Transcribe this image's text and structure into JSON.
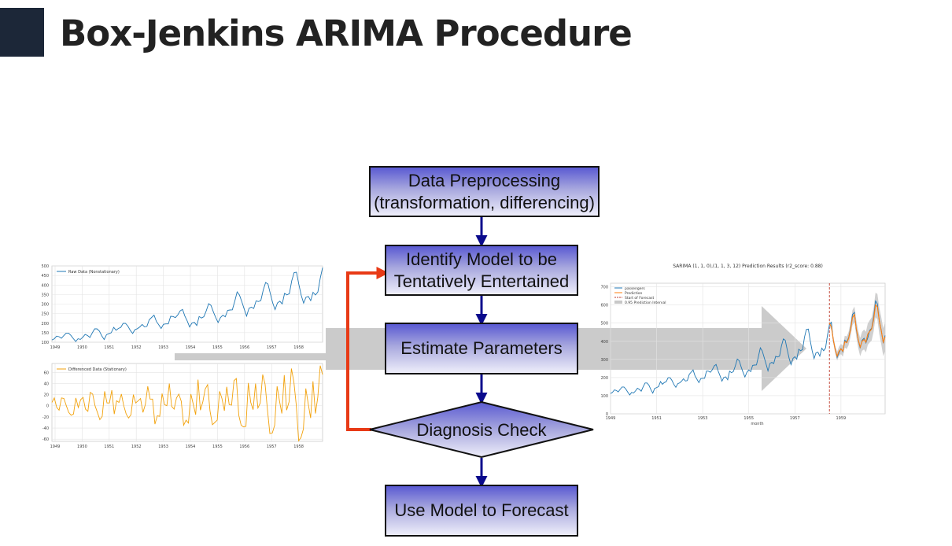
{
  "slide": {
    "title": "Box-Jenkins ARIMA Procedure"
  },
  "flowchart": {
    "step1": "Data Preprocessing\n(transformation, differencing)",
    "step2": "Identify Model to be\nTentatively Entertained",
    "step3": "Estimate Parameters",
    "step4": "Diagnosis Check",
    "step5": "Use Model to Forecast",
    "colors": {
      "arrow": "#0a0a8c",
      "feedback": "#e83a16",
      "box_top": "#5a5ad2",
      "box_bottom": "#eeeefa",
      "band": "#c8c8c8"
    }
  },
  "chart_data": [
    {
      "type": "line",
      "legend": [
        "Raw Data (Nonstationary)"
      ],
      "x_ticks": [
        "1949",
        "1950",
        "1951",
        "1952",
        "1953",
        "1954",
        "1955",
        "1956",
        "1957",
        "1958"
      ],
      "y_ticks": [
        "100",
        "150",
        "200",
        "250",
        "300",
        "350",
        "400",
        "450",
        "500"
      ],
      "ylim": [
        100,
        500
      ],
      "grid": true,
      "legend_position": "top-left",
      "color": "#1f77b4",
      "series": [
        {
          "values": [
            112,
            118,
            132,
            129,
            121,
            135,
            148,
            148,
            136,
            119,
            104,
            118,
            115,
            126,
            141,
            135,
            125,
            149,
            170,
            170,
            158,
            133,
            114,
            140,
            145,
            150,
            178,
            163,
            172,
            178,
            199,
            199,
            184,
            162,
            146,
            166,
            171,
            180,
            193,
            181,
            183,
            218,
            230,
            242,
            209,
            191,
            172,
            194,
            196,
            196,
            236,
            235,
            229,
            243,
            264,
            272,
            237,
            211,
            180,
            201,
            204,
            188,
            235,
            227,
            234,
            264,
            302,
            293,
            259,
            229,
            203,
            229,
            242,
            233,
            267,
            269,
            270,
            315,
            364,
            347,
            312,
            274,
            237,
            278,
            284,
            277,
            317,
            313,
            318,
            374,
            413,
            405,
            355,
            306,
            271,
            306,
            315,
            301,
            356,
            348,
            355,
            422,
            465,
            467,
            404,
            347,
            305,
            336,
            340,
            318,
            362,
            348,
            363,
            435,
            491
          ]
        }
      ]
    },
    {
      "type": "line",
      "legend": [
        "Differenced Data (Stationary)"
      ],
      "x_ticks": [
        "1949",
        "1950",
        "1951",
        "1952",
        "1953",
        "1954",
        "1955",
        "1956",
        "1957",
        "1958"
      ],
      "y_ticks": [
        "60",
        "40",
        "20",
        "0",
        "-20",
        "-40",
        "-60"
      ],
      "ylim": [
        -64,
        76
      ],
      "grid": true,
      "legend_position": "top-left",
      "color": "#f2a20c",
      "series": [
        {
          "values": [
            6,
            14,
            -3,
            -8,
            14,
            13,
            0,
            -12,
            -17,
            -15,
            14,
            -3,
            11,
            15,
            -6,
            -10,
            24,
            21,
            0,
            -12,
            -25,
            -19,
            26,
            5,
            5,
            28,
            -15,
            9,
            6,
            21,
            0,
            -15,
            -22,
            -16,
            20,
            5,
            9,
            13,
            -12,
            2,
            35,
            12,
            12,
            -33,
            -18,
            -19,
            22,
            2,
            0,
            40,
            -1,
            -6,
            14,
            21,
            8,
            -35,
            -26,
            -31,
            21,
            3,
            -16,
            47,
            -8,
            7,
            30,
            38,
            -9,
            -34,
            -30,
            -26,
            26,
            13,
            -9,
            34,
            2,
            1,
            45,
            49,
            -17,
            -35,
            -38,
            -37,
            41,
            6,
            -7,
            40,
            -4,
            5,
            56,
            39,
            -8,
            -50,
            -49,
            -35,
            35,
            9,
            -14,
            55,
            -8,
            7,
            67,
            43,
            2,
            -63,
            -57,
            -42,
            31,
            4,
            -22,
            44,
            -14,
            15,
            72,
            56
          ]
        }
      ]
    },
    {
      "type": "line",
      "title": "SARIMA (1, 1, 0),(1, 1, 3, 12) Prediction Results (r2_score: 0.88)",
      "xlabel": "month",
      "legend": [
        "passengers",
        "Prediction",
        "Start of Forecast",
        "0.95 Prediction Interval"
      ],
      "x_ticks": [
        "1949",
        "1951",
        "1953",
        "1955",
        "1957",
        "1959"
      ],
      "y_ticks": [
        "700",
        "600",
        "500",
        "400",
        "300",
        "200",
        "100",
        "0"
      ],
      "ylim": [
        0,
        720
      ],
      "grid": true,
      "legend_position": "top-left",
      "forecast_start": 1958.5,
      "colors": {
        "passengers": "#1f77b4",
        "prediction": "#ff7f0e",
        "start": "#c0392b",
        "interval": "#c8c8c8"
      },
      "series": [
        {
          "name": "passengers",
          "values": [
            112,
            118,
            132,
            129,
            121,
            135,
            148,
            148,
            136,
            119,
            104,
            118,
            115,
            126,
            141,
            135,
            125,
            149,
            170,
            170,
            158,
            133,
            114,
            140,
            145,
            150,
            178,
            163,
            172,
            178,
            199,
            199,
            184,
            162,
            146,
            166,
            171,
            180,
            193,
            181,
            183,
            218,
            230,
            242,
            209,
            191,
            172,
            194,
            196,
            196,
            236,
            235,
            229,
            243,
            264,
            272,
            237,
            211,
            180,
            201,
            204,
            188,
            235,
            227,
            234,
            264,
            302,
            293,
            259,
            229,
            203,
            229,
            242,
            233,
            267,
            269,
            270,
            315,
            364,
            347,
            312,
            274,
            237,
            278,
            284,
            277,
            317,
            313,
            318,
            374,
            413,
            405,
            355,
            306,
            271,
            306,
            315,
            301,
            356,
            348,
            355,
            422,
            465,
            467,
            404,
            347,
            305,
            336,
            340,
            318,
            362,
            348,
            363,
            435,
            491,
            505,
            404,
            359,
            310,
            337,
            360,
            342,
            406,
            396,
            420,
            472,
            548,
            559,
            463,
            407,
            362,
            405,
            417,
            391,
            419,
            461,
            472,
            535,
            622,
            606,
            508,
            461,
            390,
            432
          ]
        },
        {
          "name": "Prediction",
          "values": [
            499,
            480,
            410,
            355,
            318,
            345,
            358,
            345,
            398,
            392,
            415,
            465,
            530,
            548,
            470,
            410,
            368,
            400,
            410,
            395,
            440,
            455,
            468,
            520,
            600,
            590,
            510,
            458,
            395,
            425
          ]
        }
      ]
    }
  ]
}
